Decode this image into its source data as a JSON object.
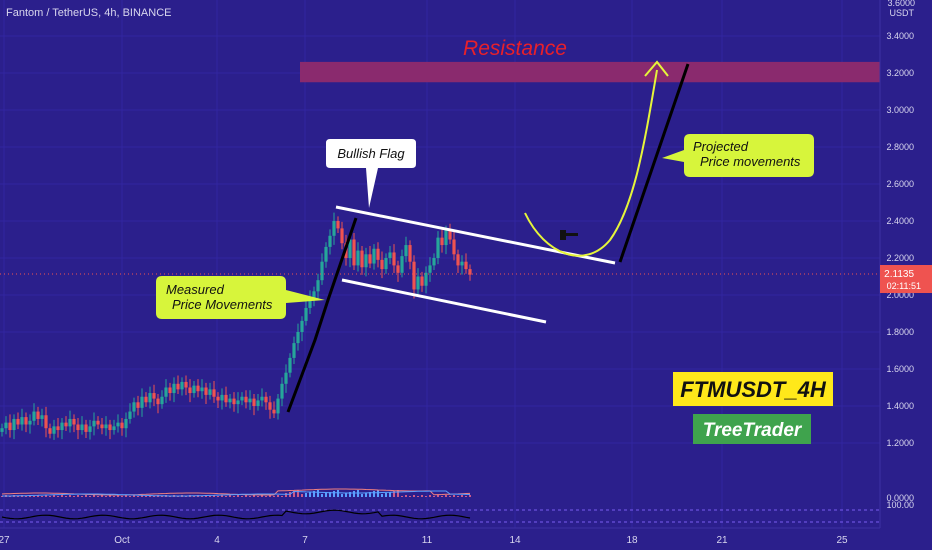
{
  "header": {
    "symbol_line": "Fantom / TetherUS, 4h, BINANCE"
  },
  "price_axis": {
    "unit": "USDT",
    "top_partial": "3.6000",
    "ticks": [
      "3.4000",
      "3.2000",
      "3.0000",
      "2.8000",
      "2.6000",
      "2.4000",
      "2.2000",
      "2.0000",
      "1.8000",
      "1.6000",
      "1.4000",
      "1.2000"
    ],
    "current_price": "2.1135",
    "countdown": "02:11:51"
  },
  "indicator_axis": {
    "ticks": [
      "0.0000",
      "100.00"
    ]
  },
  "time_axis": {
    "ticks": [
      "27",
      "Oct",
      "4",
      "7",
      "11",
      "14",
      "18",
      "21",
      "25"
    ]
  },
  "annotations": {
    "resistance": "Resistance",
    "bullish_flag": "Bullish Flag",
    "measured_line1": "Measured",
    "measured_line2": "Price Movements",
    "projected_line1": "Projected",
    "projected_line2": "Price movements",
    "ticker_badge": "FTMUSDT_4H",
    "author_badge": "TreeTrader"
  },
  "colors": {
    "background": "#2b1f8c",
    "up_candle": "#26a69a",
    "down_candle": "#ef5350",
    "resistance_zone": "#8a2a6e",
    "resistance_text": "#e8202a",
    "callout_yellow": "#d7f53b",
    "badge_yellow": "#ffe81a",
    "badge_green": "#3fa34d",
    "price_tag": "#ef5350"
  },
  "chart_data": {
    "type": "candlestick",
    "interval": "4h",
    "ylim": [
      1.1,
      3.6
    ],
    "resistance_zone": [
      3.15,
      3.26
    ],
    "closes": [
      1.28,
      1.31,
      1.27,
      1.33,
      1.3,
      1.34,
      1.3,
      1.32,
      1.37,
      1.33,
      1.35,
      1.28,
      1.25,
      1.29,
      1.27,
      1.31,
      1.29,
      1.33,
      1.3,
      1.27,
      1.3,
      1.26,
      1.29,
      1.32,
      1.3,
      1.28,
      1.3,
      1.27,
      1.29,
      1.31,
      1.28,
      1.33,
      1.37,
      1.42,
      1.39,
      1.45,
      1.42,
      1.47,
      1.44,
      1.41,
      1.45,
      1.5,
      1.47,
      1.52,
      1.49,
      1.53,
      1.5,
      1.47,
      1.51,
      1.48,
      1.5,
      1.46,
      1.49,
      1.45,
      1.43,
      1.46,
      1.42,
      1.44,
      1.41,
      1.43,
      1.45,
      1.42,
      1.44,
      1.4,
      1.43,
      1.45,
      1.42,
      1.38,
      1.36,
      1.44,
      1.52,
      1.58,
      1.66,
      1.74,
      1.8,
      1.86,
      1.93,
      1.98,
      2.02,
      2.08,
      2.18,
      2.26,
      2.32,
      2.4,
      2.36,
      2.28,
      2.2,
      2.3,
      2.16,
      2.24,
      2.15,
      2.22,
      2.17,
      2.25,
      2.19,
      2.14,
      2.2,
      2.23,
      2.16,
      2.12,
      2.21,
      2.27,
      2.18,
      2.03,
      2.1,
      2.05,
      2.12,
      2.16,
      2.2,
      2.31,
      2.27,
      2.35,
      2.3,
      2.22,
      2.16,
      2.18,
      2.14,
      2.11
    ]
  }
}
